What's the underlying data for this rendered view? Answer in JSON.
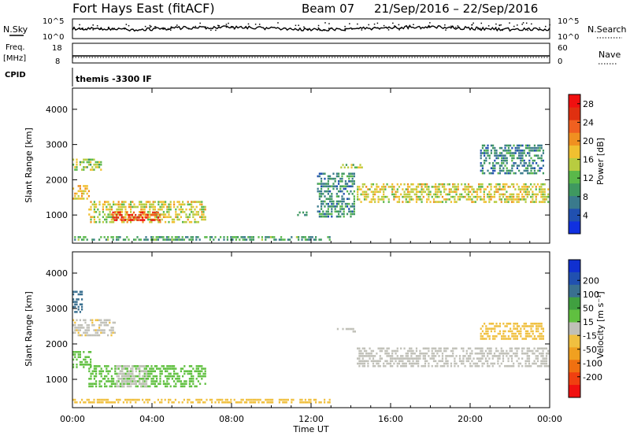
{
  "header": {
    "title": "Fort Hays East (fitACF)",
    "beam": "Beam 07",
    "date_range": "21/Sep/2016 – 22/Sep/2016"
  },
  "top_panels": {
    "nsky_label": "N.Sky",
    "nsky_ticks": [
      "10^5",
      "10^0"
    ],
    "nsearch_label": "N.Search",
    "freq_label_1": "Freq.",
    "freq_label_2": "[MHz]",
    "freq_ticks": [
      "18",
      "8"
    ],
    "nave_ticks": [
      "60",
      "0"
    ],
    "nave_label": "Nave",
    "cpid_label": "CPID",
    "cpid_value": "themis -3300 IF"
  },
  "colors": {
    "power_scale": [
      "#1030e0",
      "#2050b0",
      "#3a7a8c",
      "#3f9860",
      "#5ab84a",
      "#b8cc40",
      "#f0c030",
      "#f09020",
      "#f06020",
      "#e03010",
      "#f01010"
    ],
    "velocity_scale": [
      "#1030d0",
      "#2050b0",
      "#3a7090",
      "#40a040",
      "#60c040",
      "#c0c0b8",
      "#f0c040",
      "#f0a020",
      "#f07010",
      "#f04010",
      "#f01010"
    ]
  },
  "chart_data": [
    {
      "type": "heatmap",
      "quantity": "Power",
      "ylabel": "Slant Range [km]",
      "xlabel": "Time UT",
      "x_ticks": [
        "00:00",
        "04:00",
        "08:00",
        "12:00",
        "16:00",
        "20:00",
        "00:00"
      ],
      "xlim_hours": [
        0,
        24
      ],
      "y_ticks": [
        1000,
        2000,
        3000,
        4000
      ],
      "ylim": [
        200,
        4600
      ],
      "colorbar": {
        "label": "Power [dB]",
        "ticks": [
          4,
          8,
          12,
          16,
          20,
          24,
          28
        ],
        "range": [
          0,
          30
        ]
      },
      "regions": [
        {
          "t0": 0.0,
          "t1": 0.9,
          "r0": 1350,
          "r1": 1850,
          "value": 18
        },
        {
          "t0": 0.0,
          "t1": 1.5,
          "r0": 2200,
          "r1": 2600,
          "value": 14
        },
        {
          "t0": 0.8,
          "t1": 6.8,
          "r0": 750,
          "r1": 1400,
          "value": 16
        },
        {
          "t0": 2.0,
          "t1": 4.5,
          "r0": 800,
          "r1": 1100,
          "value": 26
        },
        {
          "t0": 0.0,
          "t1": 13.0,
          "r0": 250,
          "r1": 400,
          "value": 10
        },
        {
          "t0": 11.3,
          "t1": 11.9,
          "r0": 900,
          "r1": 1100,
          "value": 8
        },
        {
          "t0": 12.3,
          "t1": 14.3,
          "r0": 900,
          "r1": 2200,
          "value": 8
        },
        {
          "t0": 13.3,
          "t1": 14.7,
          "r0": 2250,
          "r1": 2450,
          "value": 14
        },
        {
          "t0": 14.3,
          "t1": 24.0,
          "r0": 1300,
          "r1": 1900,
          "value": 16
        },
        {
          "t0": 20.5,
          "t1": 23.8,
          "r0": 2100,
          "r1": 3000,
          "value": 8
        }
      ]
    },
    {
      "type": "heatmap",
      "quantity": "Velocity",
      "ylabel": "Slant Range [km]",
      "xlabel": "Time UT",
      "x_ticks": [
        "00:00",
        "04:00",
        "08:00",
        "12:00",
        "16:00",
        "20:00",
        "00:00"
      ],
      "xlim_hours": [
        0,
        24
      ],
      "y_ticks": [
        1000,
        2000,
        3000,
        4000
      ],
      "ylim": [
        200,
        4600
      ],
      "colorbar": {
        "label": "Velocity [m s⁻¹]",
        "ticks": [
          200,
          100,
          50,
          15,
          -15,
          -50,
          -100,
          -200
        ],
        "range": [
          -250,
          250
        ]
      },
      "regions": [
        {
          "t0": 0.0,
          "t1": 0.6,
          "r0": 2800,
          "r1": 3500,
          "value": 120
        },
        {
          "t0": 0.0,
          "t1": 2.2,
          "r0": 2200,
          "r1": 2700,
          "value": -20
        },
        {
          "t0": 0.0,
          "t1": 1.0,
          "r0": 1300,
          "r1": 1800,
          "value": 40
        },
        {
          "t0": 0.8,
          "t1": 6.8,
          "r0": 750,
          "r1": 1400,
          "value": 40
        },
        {
          "t0": 2.2,
          "t1": 3.8,
          "r0": 750,
          "r1": 1400,
          "value": 0
        },
        {
          "t0": 0.0,
          "t1": 13.0,
          "r0": 250,
          "r1": 450,
          "value": -60
        },
        {
          "t0": 13.3,
          "t1": 14.3,
          "r0": 2250,
          "r1": 2450,
          "value": 0
        },
        {
          "t0": 14.3,
          "t1": 24.0,
          "r0": 1300,
          "r1": 1900,
          "value": 0
        },
        {
          "t0": 20.5,
          "t1": 23.8,
          "r0": 2100,
          "r1": 2600,
          "value": -30
        }
      ]
    }
  ]
}
